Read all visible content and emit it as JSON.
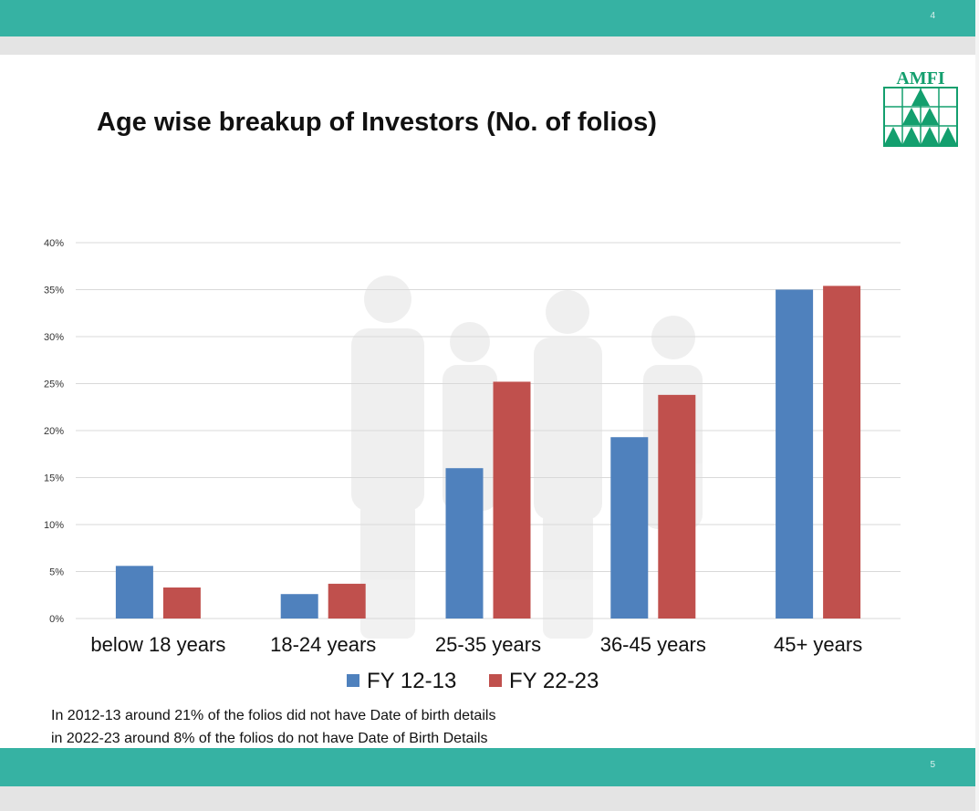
{
  "slide_top": {
    "page_number": "4"
  },
  "slide_bottom": {
    "page_number": "5"
  },
  "logo": {
    "text": "AMFI",
    "color": "#139f6e"
  },
  "colors": {
    "bar_teal": "#36b2a3",
    "fy1213": "#4f81bd",
    "fy2223": "#c0504d"
  },
  "chart_data": {
    "type": "bar",
    "title": "Age wise breakup of Investors (No. of folios)",
    "categories": [
      "below 18 years",
      "18-24 years",
      "25-35 years",
      "36-45 years",
      "45+ years"
    ],
    "series": [
      {
        "name": "FY 12-13",
        "values": [
          5.6,
          2.6,
          16.0,
          19.3,
          35.0
        ]
      },
      {
        "name": "FY 22-23",
        "values": [
          3.3,
          3.7,
          25.2,
          23.8,
          35.4
        ]
      }
    ],
    "ylim": [
      0,
      40
    ],
    "yticks": [
      "0%",
      "5%",
      "10%",
      "15%",
      "20%",
      "25%",
      "30%",
      "35%",
      "40%"
    ],
    "grid": true,
    "legend": "bottom"
  },
  "notes": [
    "In 2012-13 around 21% of the folios did not have Date of birth details",
    "in 2022-23 around 8% of the folios do not have Date of Birth Details"
  ]
}
